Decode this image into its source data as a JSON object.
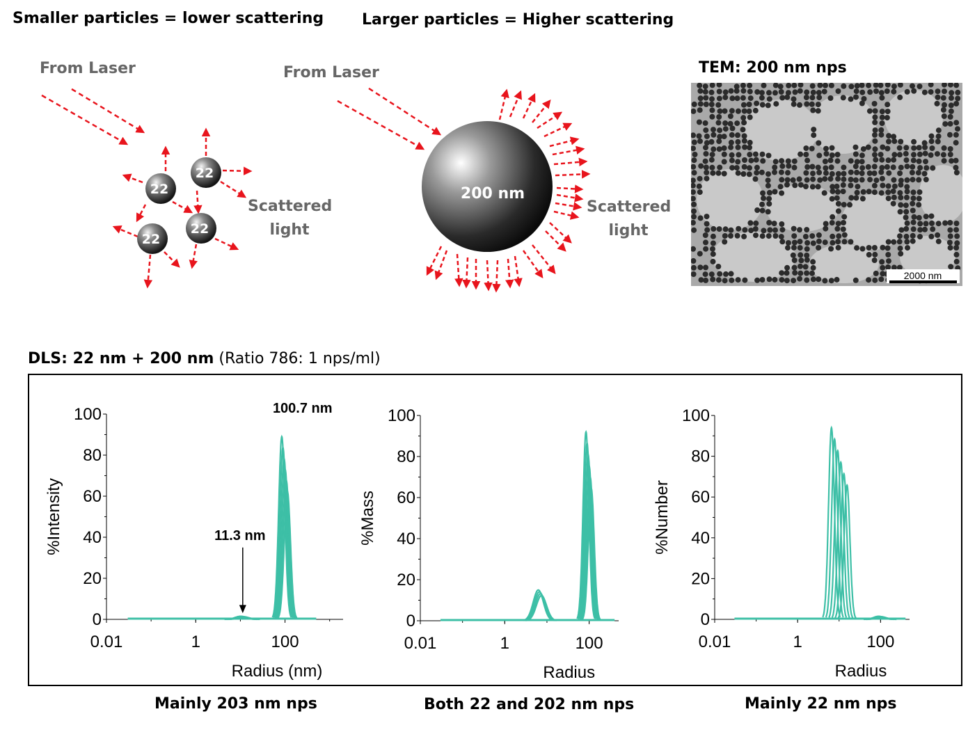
{
  "headings": {
    "small": "Smaller particles = lower scattering",
    "large": "Larger particles = Higher scattering",
    "tem": "TEM: 200 nm nps"
  },
  "illustration": {
    "from_laser": "From Laser",
    "scattered_line1": "Scattered",
    "scattered_line2": "light",
    "small_particle_label": "22",
    "large_particle_label": "200 nm",
    "arrow_color": "#e8141c"
  },
  "tem": {
    "scale_bar": "2000 nm"
  },
  "dls": {
    "title_bold": "DLS: 22 nm + 200 nm",
    "title_rest": " (Ratio 786: 1 nps/ml)"
  },
  "captions": [
    "Mainly 203 nm nps",
    "Both 22 and 202 nm nps",
    "Mainly 22 nm nps"
  ],
  "chart_data": [
    {
      "type": "line",
      "ylabel": "%Intensity",
      "xlabel": "Radius (nm)",
      "xscale": "log",
      "xlim": [
        0.01,
        2000
      ],
      "ylim": [
        0,
        100
      ],
      "xticks": [
        "0.01",
        "1",
        "100"
      ],
      "yticks": [
        "0",
        "20",
        "40",
        "60",
        "80",
        "100"
      ],
      "color": "#3dbfa6",
      "annotations": [
        "100.7 nm",
        "11.3 nm"
      ],
      "peaks": [
        {
          "center": 100.7,
          "height": 89
        },
        {
          "center": 11.3,
          "height": 1.5
        }
      ]
    },
    {
      "type": "line",
      "ylabel": "%Mass",
      "xlabel": "Radius",
      "xscale": "log",
      "xlim": [
        0.01,
        500
      ],
      "ylim": [
        0,
        100
      ],
      "xticks": [
        "0.01",
        "1",
        "100"
      ],
      "yticks": [
        "0",
        "20",
        "40",
        "60",
        "80",
        "100"
      ],
      "color": "#3dbfa6",
      "peaks": [
        {
          "center": 7,
          "height": 15
        },
        {
          "center": 100,
          "height": 92
        }
      ]
    },
    {
      "type": "line",
      "ylabel": "%Number",
      "xlabel": "Radius",
      "xscale": "log",
      "xlim": [
        0.01,
        500
      ],
      "ylim": [
        0,
        100
      ],
      "xticks": [
        "0.01",
        "1",
        "100"
      ],
      "yticks": [
        "0",
        "20",
        "40",
        "60",
        "80",
        "100"
      ],
      "color": "#3dbfa6",
      "peaks": [
        {
          "center": 11,
          "height": 94
        },
        {
          "center": 100,
          "height": 1.5
        }
      ]
    }
  ]
}
